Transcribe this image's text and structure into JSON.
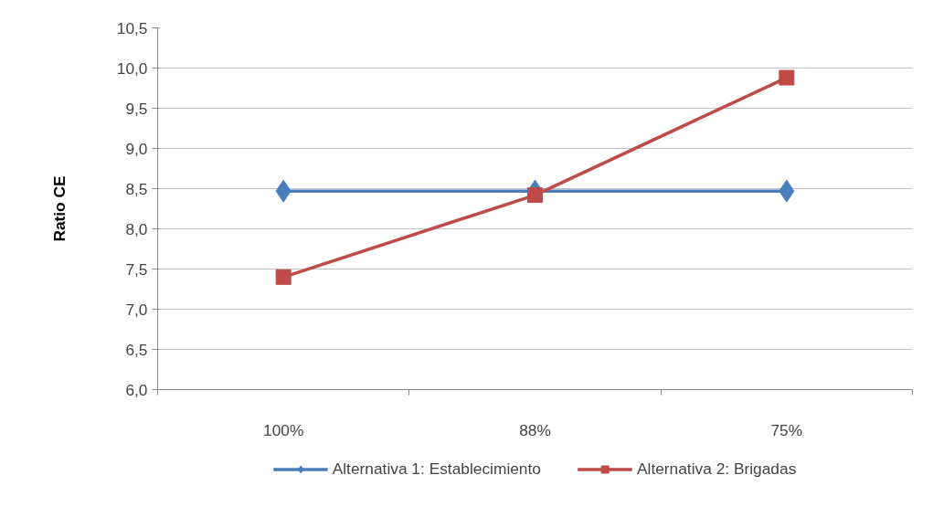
{
  "chart_data": {
    "type": "line",
    "ylabel": "Ratio CE",
    "categories": [
      "100%",
      "88%",
      "75%"
    ],
    "series": [
      {
        "name": "Alternativa 1: Establecimiento",
        "color": "#4a7ebb",
        "marker": "diamond",
        "values": [
          8.47,
          8.47,
          8.47
        ]
      },
      {
        "name": "Alternativa 2: Brigadas",
        "color": "#be4b48",
        "marker": "square",
        "values": [
          7.4,
          8.42,
          9.88
        ]
      }
    ],
    "ylim": [
      6.0,
      10.5
    ],
    "yticks": [
      {
        "value": 6.0,
        "label": "6,0"
      },
      {
        "value": 6.5,
        "label": "6,5"
      },
      {
        "value": 7.0,
        "label": "7,0"
      },
      {
        "value": 7.5,
        "label": "7,5"
      },
      {
        "value": 8.0,
        "label": "8,0"
      },
      {
        "value": 8.5,
        "label": "8,5"
      },
      {
        "value": 9.0,
        "label": "9,0"
      },
      {
        "value": 9.5,
        "label": "9,5"
      },
      {
        "value": 10.0,
        "label": "10,0"
      },
      {
        "value": 10.5,
        "label": "10,5"
      }
    ],
    "grid": "y",
    "legend": "bottom",
    "line_style": "solid"
  }
}
